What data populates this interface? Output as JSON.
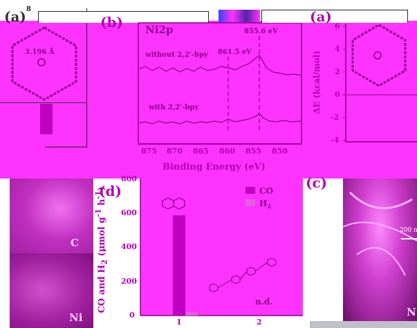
{
  "panels": {
    "a_left": {
      "label": "(a)",
      "axis_top": "8",
      "distance": "3.196 Å"
    },
    "b": {
      "label": "(b)",
      "title": "Ni2p",
      "peak1": "855.6 eV",
      "peak2": "861.5 eV",
      "trace_top": "without 2,2'-bpy",
      "trace_bottom": "with 2,2'-bpy",
      "xlabel": "Binding Energy (eV)",
      "xticks": [
        "875",
        "870",
        "865",
        "860",
        "855",
        "850"
      ]
    },
    "a_right": {
      "label": "(a)",
      "ylabel": "ΔE (kcal/mol)",
      "yticks": [
        "6",
        "4",
        "2",
        "0",
        "-2",
        "-4"
      ]
    },
    "d": {
      "label": "(d)",
      "ylabel": "CO and H",
      "ylabel_sub": "2",
      "ylabel_units": " (μmol g",
      "ylabel_sup1": "-1",
      "ylabel_h": " h",
      "ylabel_sup2": "-1",
      "ylabel_end": ")",
      "legend_co": "CO",
      "legend_h": "H",
      "legend_h_sub": "2",
      "nd": "n.d.",
      "xticks": [
        "1",
        "2"
      ],
      "yticks": [
        "800",
        "600",
        "400",
        "200",
        "0"
      ]
    },
    "c": {
      "label": "(c)",
      "scale": "200 nm",
      "element": "N"
    },
    "map_left": {
      "c_label": "C",
      "ni_label": "Ni"
    }
  },
  "chart_data": [
    {
      "type": "bar",
      "categories": [
        "1",
        "2"
      ],
      "series": [
        {
          "name": "CO",
          "values": [
            585,
            0
          ]
        },
        {
          "name": "H2",
          "values": [
            20,
            0
          ]
        }
      ],
      "ylabel": "CO and H2 (μmol g-1 h-1)",
      "ylim": [
        0,
        800
      ],
      "annotations": [
        "n.d."
      ]
    },
    {
      "type": "line",
      "title": "Ni2p",
      "xlabel": "Binding Energy (eV)",
      "xlim": [
        878,
        848
      ],
      "series": [
        {
          "name": "without 2,2'-bpy",
          "peaks": [
            855.6,
            861.5
          ]
        },
        {
          "name": "with 2,2'-bpy",
          "peaks": [
            855.6
          ]
        }
      ]
    }
  ],
  "colors": {
    "magenta": "#ff33ff",
    "dark_magenta": "#b000b0",
    "line": "#cc00cc"
  }
}
